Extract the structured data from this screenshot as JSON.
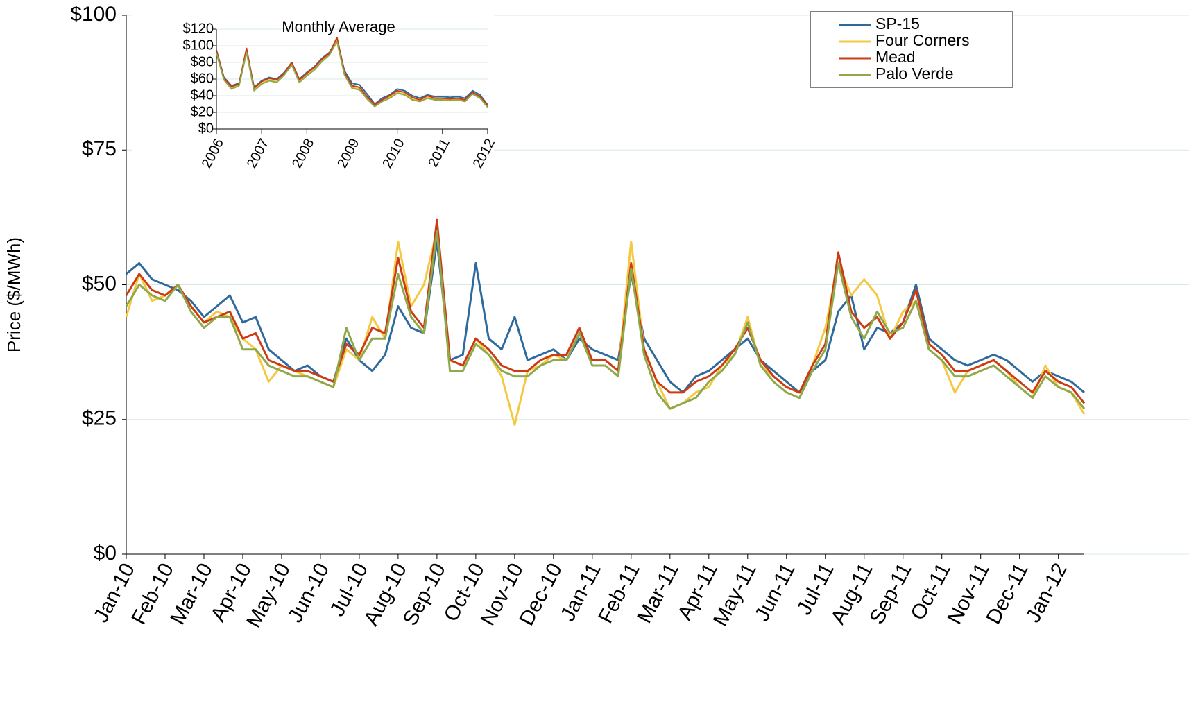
{
  "chart_data": [
    {
      "type": "line",
      "ylabel": "Price ($/MWh)",
      "legend": "top-right",
      "grid": true,
      "categories": [
        "Jan-10",
        null,
        null,
        "Feb-10",
        null,
        null,
        "Mar-10",
        null,
        null,
        "Apr-10",
        null,
        null,
        "May-10",
        null,
        null,
        "Jun-10",
        null,
        null,
        "Jul-10",
        null,
        null,
        "Aug-10",
        null,
        null,
        "Sep-10",
        null,
        null,
        "Oct-10",
        null,
        null,
        "Nov-10",
        null,
        null,
        "Dec-10",
        null,
        null,
        "Jan-11",
        null,
        null,
        "Feb-11",
        null,
        null,
        "Mar-11",
        null,
        null,
        "Apr-11",
        null,
        null,
        "May-11",
        null,
        null,
        "Jun-11",
        null,
        null,
        "Jul-11",
        null,
        null,
        "Aug-11",
        null,
        null,
        "Sep-11",
        null,
        null,
        "Oct-11",
        null,
        null,
        "Nov-11",
        null,
        null,
        "Dec-11",
        null,
        null,
        "Jan-12",
        null,
        null
      ],
      "ylim": [
        0,
        100
      ],
      "yticks": [
        {
          "value": 0,
          "label": "$0"
        },
        {
          "value": 25,
          "label": "$25"
        },
        {
          "value": 50,
          "label": "$50"
        },
        {
          "value": 75,
          "label": "$75"
        },
        {
          "value": 100,
          "label": "$100"
        }
      ],
      "series": [
        {
          "name": "SP-15",
          "color": "#2e6a9c",
          "values": [
            52,
            54,
            51,
            50,
            49,
            47,
            44,
            46,
            48,
            43,
            44,
            38,
            36,
            34,
            35,
            33,
            32,
            40,
            36,
            34,
            37,
            46,
            42,
            41,
            58,
            36,
            37,
            54,
            40,
            38,
            44,
            36,
            37,
            38,
            36,
            40,
            38,
            37,
            36,
            52,
            40,
            36,
            32,
            30,
            33,
            34,
            36,
            38,
            40,
            36,
            34,
            32,
            30,
            34,
            36,
            45,
            48,
            38,
            42,
            41,
            43,
            50,
            40,
            38,
            36,
            35,
            36,
            37,
            36,
            34,
            32,
            34,
            33,
            32,
            30
          ]
        },
        {
          "name": "Four Corners",
          "color": "#f5c842",
          "values": [
            44,
            52,
            47,
            48,
            50,
            46,
            43,
            45,
            44,
            40,
            38,
            32,
            35,
            34,
            33,
            32,
            31,
            38,
            36,
            44,
            40,
            58,
            46,
            50,
            60,
            36,
            35,
            40,
            37,
            33,
            24,
            34,
            35,
            37,
            36,
            41,
            36,
            36,
            34,
            58,
            38,
            32,
            27,
            28,
            30,
            31,
            35,
            37,
            44,
            35,
            33,
            31,
            30,
            35,
            42,
            54,
            48,
            51,
            48,
            40,
            45,
            47,
            38,
            36,
            30,
            34,
            35,
            36,
            34,
            31,
            29,
            35,
            31,
            30,
            26
          ]
        },
        {
          "name": "Mead",
          "color": "#cc3b14",
          "values": [
            48,
            52,
            49,
            48,
            50,
            46,
            43,
            44,
            45,
            40,
            41,
            36,
            35,
            34,
            34,
            33,
            32,
            39,
            37,
            42,
            41,
            55,
            45,
            42,
            62,
            36,
            35,
            40,
            38,
            35,
            34,
            34,
            36,
            37,
            37,
            42,
            36,
            36,
            34,
            54,
            38,
            32,
            30,
            30,
            32,
            33,
            35,
            38,
            42,
            36,
            33,
            31,
            30,
            35,
            39,
            56,
            45,
            42,
            44,
            40,
            43,
            49,
            39,
            37,
            34,
            34,
            35,
            36,
            34,
            32,
            30,
            34,
            32,
            31,
            28
          ]
        },
        {
          "name": "Palo Verde",
          "color": "#8fa84a",
          "values": [
            46,
            50,
            48,
            47,
            50,
            45,
            42,
            44,
            44,
            38,
            38,
            35,
            34,
            33,
            33,
            32,
            31,
            42,
            36,
            40,
            40,
            52,
            44,
            41,
            60,
            34,
            34,
            39,
            37,
            34,
            33,
            33,
            35,
            36,
            36,
            41,
            35,
            35,
            33,
            53,
            37,
            30,
            27,
            28,
            29,
            32,
            34,
            37,
            43,
            35,
            32,
            30,
            29,
            34,
            38,
            54,
            44,
            40,
            45,
            41,
            42,
            47,
            38,
            36,
            33,
            33,
            34,
            35,
            33,
            31,
            29,
            33,
            31,
            30,
            27
          ]
        }
      ]
    },
    {
      "type": "line",
      "title": "Monthly Average",
      "categories": [
        "2006",
        null,
        null,
        null,
        null,
        null,
        "2007",
        null,
        null,
        null,
        null,
        null,
        "2008",
        null,
        null,
        null,
        null,
        null,
        "2009",
        null,
        null,
        null,
        null,
        null,
        "2010",
        null,
        null,
        null,
        null,
        null,
        "2011",
        null,
        null,
        null,
        null,
        null,
        "2012"
      ],
      "ylim": [
        0,
        120
      ],
      "yticks": [
        {
          "value": 0,
          "label": "$0"
        },
        {
          "value": 20,
          "label": "$20"
        },
        {
          "value": 40,
          "label": "$40"
        },
        {
          "value": 60,
          "label": "$60"
        },
        {
          "value": 80,
          "label": "$80"
        },
        {
          "value": 100,
          "label": "$100"
        },
        {
          "value": 120,
          "label": "$120"
        }
      ],
      "series": [
        {
          "name": "SP-15",
          "color": "#2e6a9c",
          "values": [
            95,
            62,
            52,
            55,
            95,
            50,
            58,
            62,
            60,
            68,
            80,
            60,
            68,
            75,
            85,
            92,
            108,
            70,
            55,
            53,
            42,
            30,
            37,
            41,
            48,
            46,
            40,
            37,
            41,
            39,
            39,
            38,
            39,
            37,
            46,
            41,
            29
          ]
        },
        {
          "name": "Four Corners",
          "color": "#f5c842",
          "values": [
            92,
            60,
            49,
            53,
            93,
            47,
            55,
            59,
            57,
            66,
            78,
            57,
            65,
            72,
            82,
            90,
            106,
            66,
            50,
            48,
            37,
            28,
            34,
            38,
            44,
            42,
            36,
            34,
            38,
            36,
            36,
            35,
            36,
            34,
            43,
            38,
            27
          ]
        },
        {
          "name": "Mead",
          "color": "#cc3b14",
          "values": [
            94,
            61,
            51,
            54,
            97,
            49,
            57,
            61,
            59,
            67,
            80,
            59,
            67,
            74,
            84,
            91,
            110,
            68,
            52,
            50,
            39,
            29,
            35,
            40,
            46,
            44,
            38,
            35,
            40,
            37,
            37,
            36,
            37,
            35,
            44,
            39,
            28
          ]
        },
        {
          "name": "Palo Verde",
          "color": "#8fa84a",
          "values": [
            91,
            59,
            48,
            52,
            92,
            46,
            54,
            58,
            56,
            65,
            77,
            56,
            64,
            71,
            81,
            89,
            105,
            65,
            49,
            47,
            36,
            27,
            33,
            37,
            43,
            41,
            35,
            33,
            37,
            35,
            35,
            34,
            35,
            33,
            42,
            37,
            26
          ]
        }
      ]
    }
  ]
}
